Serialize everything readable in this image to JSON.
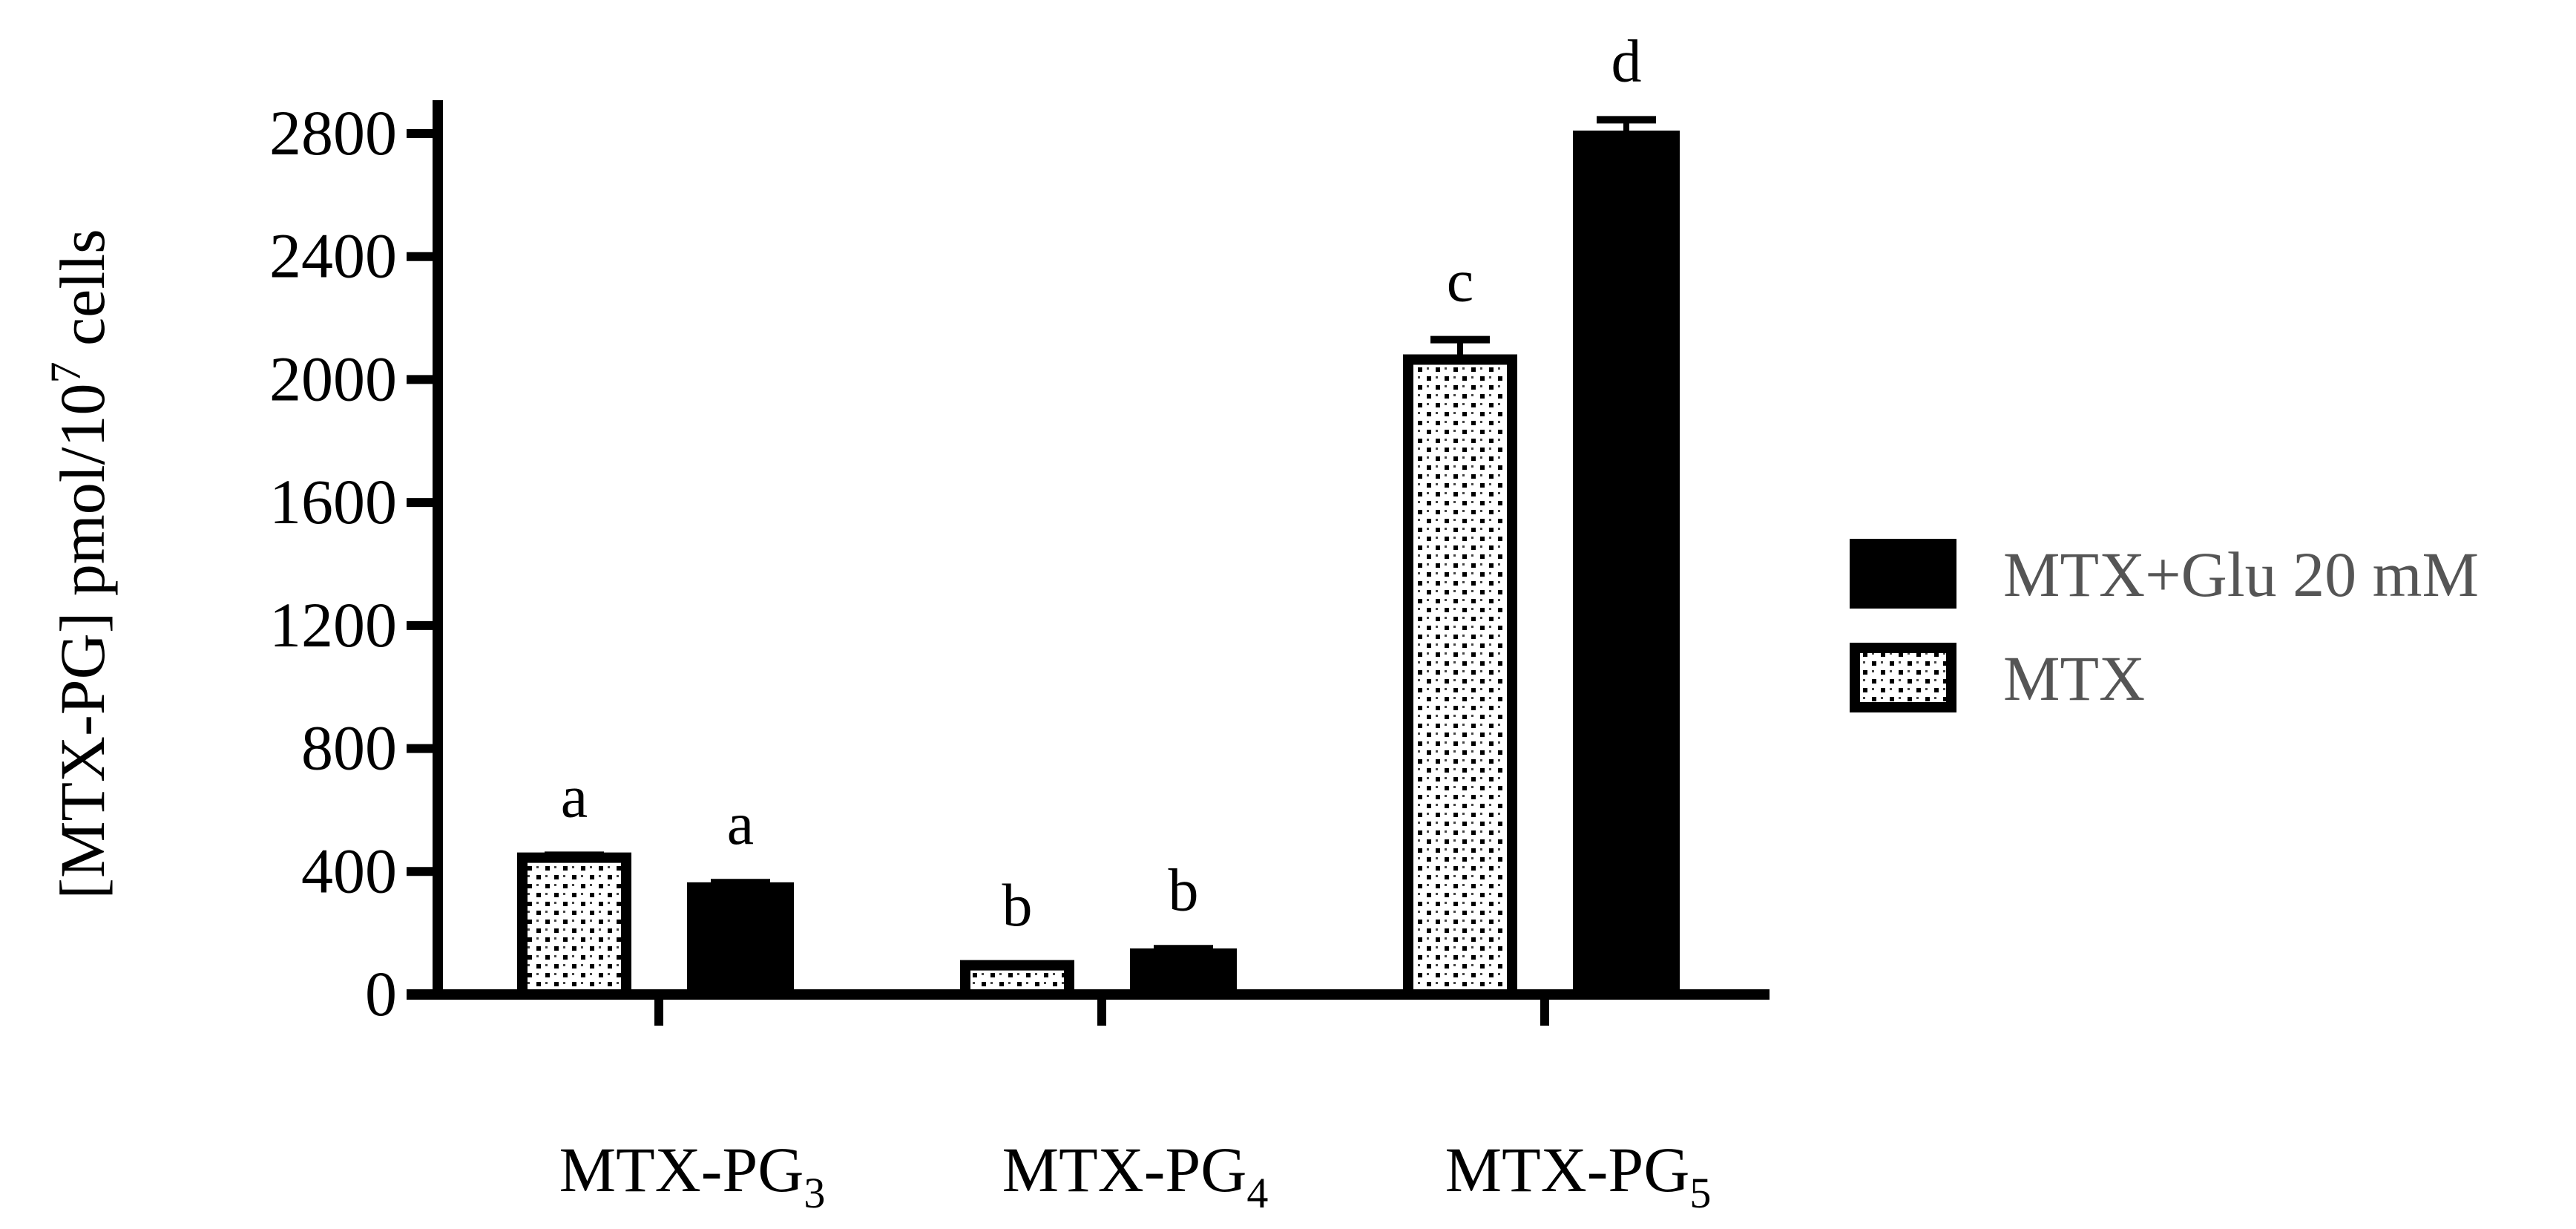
{
  "chart_data": {
    "type": "bar",
    "title": "",
    "ylabel": "[MTX-PG] pmol/10",
    "ylabel_sup": "7",
    "ylabel_end": " cells",
    "ylim": [
      0,
      2800
    ],
    "yticks": [
      0,
      400,
      800,
      1200,
      1600,
      2000,
      2400,
      2800
    ],
    "categories": [
      {
        "base": "MTX-PG",
        "sub": "3"
      },
      {
        "base": "MTX-PG",
        "sub": "4"
      },
      {
        "base": "MTX-PG",
        "sub": "5"
      }
    ],
    "series": [
      {
        "name": "MTX",
        "pattern": "dotted",
        "values": [
          445,
          95,
          2065
        ],
        "errors": [
          8,
          4,
          65
        ],
        "letters": [
          "a",
          "b",
          "c"
        ]
      },
      {
        "name": "MTX+Glu 20 mM",
        "pattern": "solid",
        "values": [
          360,
          145,
          2805
        ],
        "errors": [
          4,
          4,
          40
        ],
        "letters": [
          "a",
          "b",
          "d"
        ]
      }
    ],
    "legend": {
      "placement": "right",
      "order": [
        "MTX+Glu 20 mM",
        "MTX"
      ]
    },
    "grid": false,
    "colors": {
      "bar": "#000000",
      "legend_text": "#555555",
      "axis": "#000000"
    }
  }
}
